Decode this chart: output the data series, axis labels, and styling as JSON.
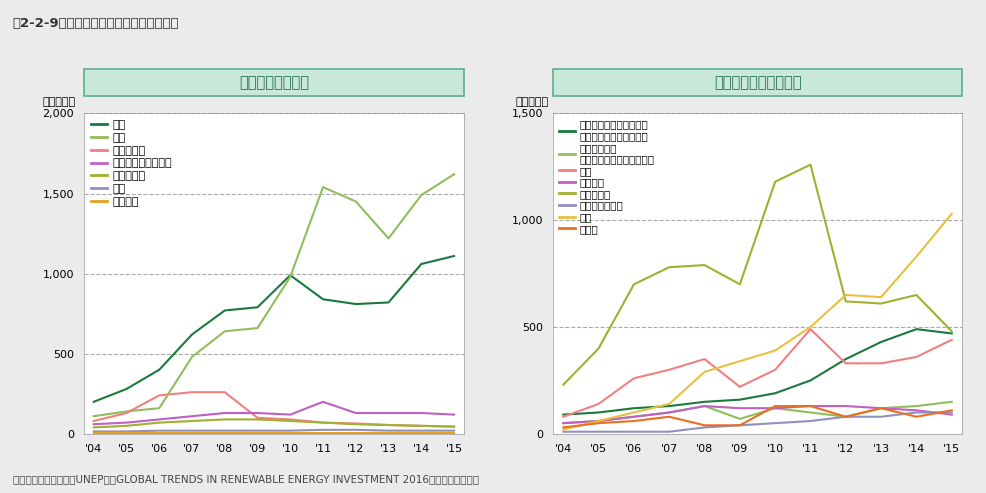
{
  "years": [
    2004,
    2005,
    2006,
    2007,
    2008,
    2009,
    2010,
    2011,
    2012,
    2013,
    2014,
    2015
  ],
  "year_labels": [
    "'04",
    "'05",
    "'06",
    "'07",
    "'08",
    "'09",
    "'10",
    "'11",
    "'12",
    "'13",
    "'14",
    "'15"
  ],
  "chart1_title": "電源別新規投資額",
  "chart2_title": "国・地域別新規投資額",
  "ylabel": "（億ドル）",
  "source": "資料：国連環境計画（UNEP）「GLOBAL TRENDS IN RENEWABLE ENERGY INVESTMENT 2016」より環境省作成",
  "main_title": "図2-2-9　再生可能エネルギーへの投資額",
  "chart1_keys": [
    "風力",
    "太陽",
    "バイオ燃料",
    "バイオマス・廃棄物",
    "小規模水力",
    "地熱",
    "波・潮流"
  ],
  "chart1": {
    "風力": [
      200,
      280,
      400,
      620,
      770,
      790,
      990,
      840,
      810,
      820,
      1060,
      1110
    ],
    "太陽": [
      110,
      140,
      160,
      480,
      640,
      660,
      980,
      1540,
      1450,
      1220,
      1490,
      1620
    ],
    "バイオ燃料": [
      80,
      130,
      240,
      260,
      260,
      100,
      90,
      70,
      65,
      55,
      50,
      45
    ],
    "バイオマス・廃棄物": [
      60,
      70,
      90,
      110,
      130,
      130,
      120,
      200,
      130,
      130,
      130,
      120
    ],
    "小規模水力": [
      40,
      50,
      70,
      80,
      90,
      90,
      80,
      70,
      60,
      55,
      50,
      45
    ],
    "地熱": [
      15,
      15,
      20,
      20,
      20,
      20,
      20,
      25,
      25,
      20,
      20,
      20
    ],
    "波・潮流": [
      5,
      5,
      5,
      5,
      5,
      5,
      5,
      5,
      5,
      5,
      5,
      5
    ]
  },
  "chart1_colors": {
    "風力": "#1a7a3c",
    "太陽": "#8fbe5a",
    "バイオ燃料": "#f08080",
    "バイオマス・廃棄物": "#c060c0",
    "小規模水力": "#a0b030",
    "地熱": "#9090c0",
    "波・潮流": "#e8a020"
  },
  "chart1_ylim": [
    0,
    2000
  ],
  "chart1_yticks": [
    0,
    500,
    1000,
    1500,
    2000
  ],
  "chart2_keys": [
    "アジア・オセアニア全体（中国・インドを除く）",
    "アメリカ全体（米国・ブラジルを除く）",
    "米国",
    "ブラジル",
    "ヨーロッパ",
    "中東・アフリカ",
    "中国",
    "インド"
  ],
  "chart2_legend": [
    "アジア・オセアニア全体\n（中国・インドを除く）",
    "アメリカ全体\n（米国・ブラジルを除く）",
    "米国",
    "ブラジル",
    "ヨーロッパ",
    "中東・アフリカ",
    "中国",
    "インド"
  ],
  "chart2": {
    "アジア・オセアニア全体（中国・インドを除く）": [
      90,
      100,
      120,
      130,
      150,
      160,
      190,
      250,
      350,
      430,
      490,
      470
    ],
    "アメリカ全体（米国・ブラジルを除く）": [
      50,
      60,
      80,
      100,
      130,
      70,
      120,
      100,
      80,
      120,
      130,
      150
    ],
    "米国": [
      80,
      140,
      260,
      300,
      350,
      220,
      300,
      490,
      330,
      330,
      360,
      440
    ],
    "ブラジル": [
      50,
      60,
      80,
      100,
      130,
      120,
      120,
      130,
      130,
      120,
      110,
      90
    ],
    "ヨーロッパ": [
      230,
      400,
      700,
      780,
      790,
      700,
      1180,
      1260,
      620,
      610,
      650,
      480
    ],
    "中東・アフリカ": [
      10,
      10,
      10,
      10,
      30,
      40,
      50,
      60,
      80,
      80,
      100,
      100
    ],
    "中国": [
      20,
      60,
      100,
      140,
      290,
      340,
      390,
      500,
      650,
      640,
      830,
      1030
    ],
    "インド": [
      30,
      50,
      60,
      80,
      40,
      40,
      130,
      130,
      80,
      120,
      80,
      110
    ]
  },
  "chart2_colors": {
    "アジア・オセアニア全体（中国・インドを除く）": "#1a7a3c",
    "アメリカ全体（米国・ブラジルを除く）": "#8fbe5a",
    "米国": "#f08080",
    "ブラジル": "#c060c0",
    "ヨーロッパ": "#a0b030",
    "中東・アフリカ": "#9090c0",
    "中国": "#e8c040",
    "インド": "#e87020"
  },
  "chart2_ylim": [
    0,
    1500
  ],
  "chart2_yticks": [
    0,
    500,
    1000,
    1500
  ],
  "box_facecolor": "#c8e8d8",
  "box_edgecolor": "#5ab090",
  "box_text_color": "#2a7050",
  "bg_color": "#ebebeb",
  "plot_bg": "#ffffff"
}
